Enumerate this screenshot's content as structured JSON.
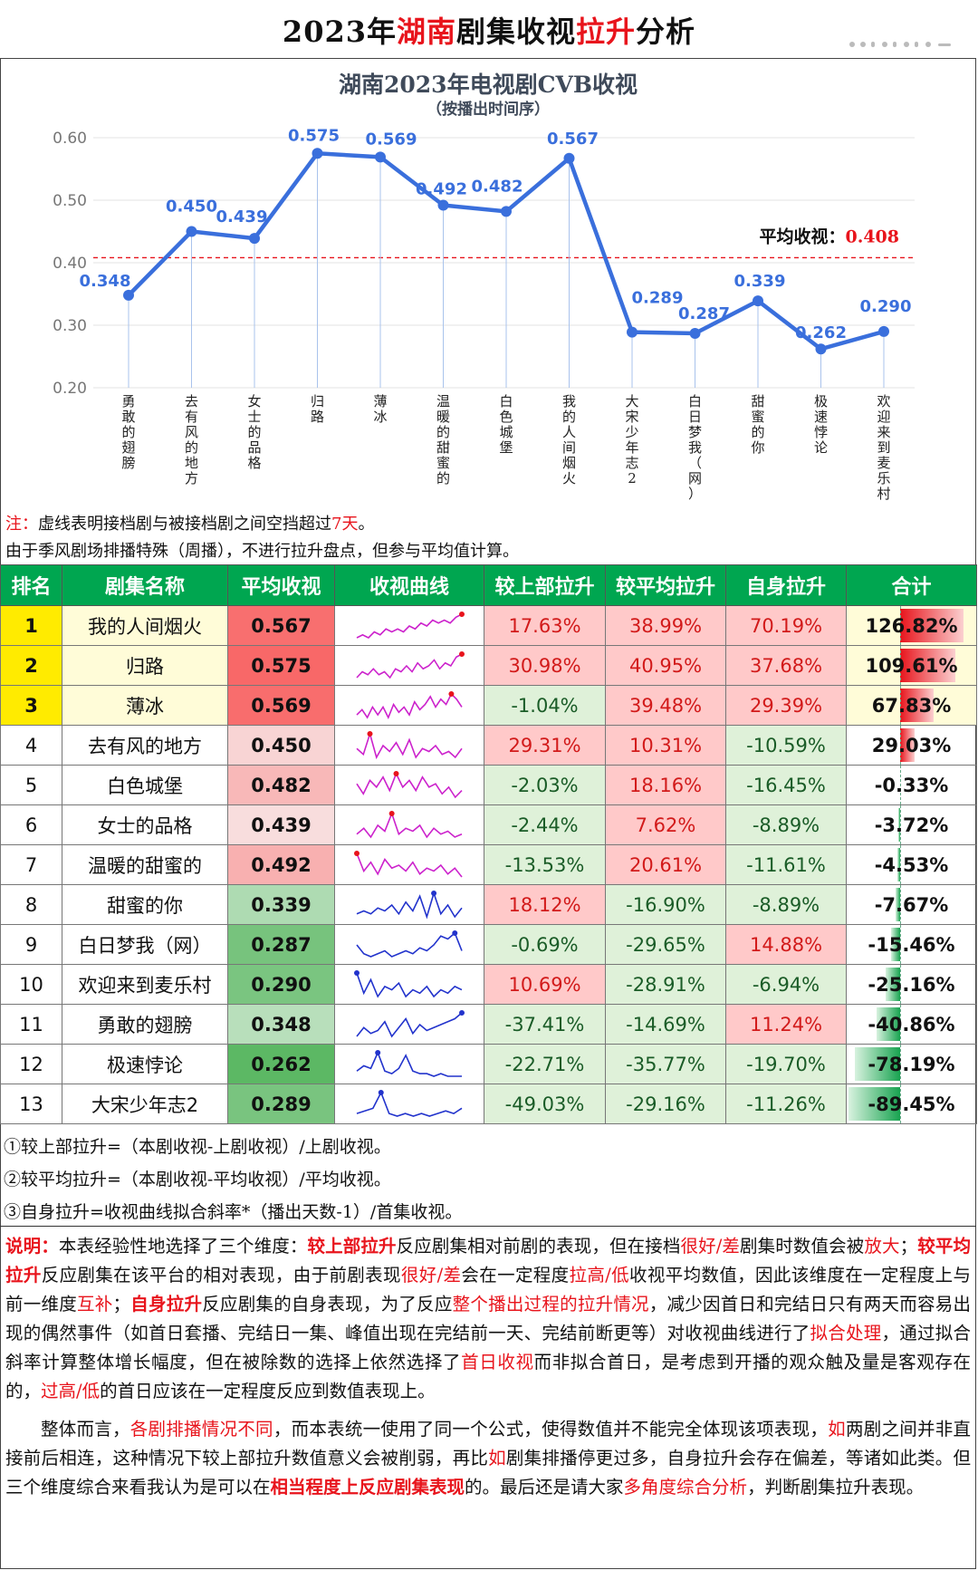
{
  "header": {
    "title_a": "2023年",
    "title_b": "湖南",
    "title_c": "剧集收视",
    "title_d": "拉升",
    "title_e": "分析"
  },
  "chart_data": {
    "type": "line",
    "title": "湖南2023年电视剧CVB收视",
    "subtitle": "（按播出时间序）",
    "categories": [
      "勇敢的翅膀",
      "去有风的地方",
      "女士的品格",
      "归路",
      "薄冰",
      "温暖的甜蜜的",
      "白色城堡",
      "我的人间烟火",
      "大宋少年志2",
      "白日梦我（网）",
      "甜蜜的你",
      "极速悖论",
      "欢迎来到麦乐村"
    ],
    "values": [
      0.348,
      0.45,
      0.439,
      0.575,
      0.569,
      0.492,
      0.482,
      0.567,
      0.289,
      0.287,
      0.339,
      0.262,
      0.29
    ],
    "value_labels": [
      "0.348",
      "0.450",
      "0.439",
      "0.575",
      "0.569",
      "0.492",
      "0.482",
      "0.567",
      "0.289",
      "0.287",
      "0.339",
      "0.262",
      "0.290"
    ],
    "ylim": [
      0.2,
      0.6
    ],
    "yticks": [
      "0.20",
      "0.30",
      "0.40",
      "0.50",
      "0.60"
    ],
    "average_label": "平均收视：",
    "average_value": "0.408",
    "average": 0.408,
    "grid": true,
    "line_color": "#3a6fdc",
    "average_color": "#e8141c"
  },
  "notes": {
    "prefix": "注：",
    "line1_a": "虚线表明接档剧与被接档剧之间空挡超过",
    "line1_b": "7天",
    "line1_c": "。",
    "line2": "由于季风剧场排播特殊（周播），不进行拉升盘点，但参与平均值计算。"
  },
  "table": {
    "headers": [
      "排名",
      "剧集名称",
      "平均收视",
      "收视曲线",
      "较上部拉升",
      "较平均拉升",
      "自身拉升",
      "合计"
    ],
    "rows": [
      {
        "rank": "1",
        "name": "我的人间烟火",
        "cvb": "0.567",
        "cvb_num": 0.567,
        "up": "17.63%",
        "avg": "38.99%",
        "self": "70.19%",
        "total": "126.82%",
        "total_num": 126.82,
        "spark": [
          3,
          4,
          3,
          5,
          4,
          6,
          5,
          6,
          5,
          7,
          6,
          8,
          7,
          9,
          8,
          9,
          8,
          10,
          11
        ],
        "spark_color": "#cc22cc",
        "top": true
      },
      {
        "rank": "2",
        "name": "归路",
        "cvb": "0.575",
        "cvb_num": 0.575,
        "up": "30.98%",
        "avg": "40.95%",
        "self": "37.68%",
        "total": "109.61%",
        "total_num": 109.61,
        "spark": [
          3,
          5,
          4,
          6,
          4,
          5,
          3,
          6,
          5,
          7,
          5,
          8,
          6,
          7,
          9,
          6,
          8,
          7,
          10,
          11
        ],
        "spark_color": "#cc22cc",
        "top": true
      },
      {
        "rank": "3",
        "name": "薄冰",
        "cvb": "0.569",
        "cvb_num": 0.569,
        "up": "-1.04%",
        "avg": "39.48%",
        "self": "29.39%",
        "total": "67.83%",
        "total_num": 67.83,
        "spark": [
          3,
          5,
          2,
          6,
          3,
          6,
          2,
          7,
          4,
          6,
          3,
          8,
          5,
          7,
          10,
          6,
          9,
          7,
          11,
          9,
          6
        ],
        "spark_color": "#cc22cc",
        "top": true
      },
      {
        "rank": "4",
        "name": "去有风的地方",
        "cvb": "0.450",
        "cvb_num": 0.45,
        "up": "29.31%",
        "avg": "10.31%",
        "self": "-10.59%",
        "total": "29.03%",
        "total_num": 29.03,
        "spark": [
          6,
          4,
          11,
          3,
          7,
          5,
          8,
          4,
          9,
          3,
          6,
          5,
          7,
          4,
          5,
          3,
          6
        ],
        "spark_color": "#cc22cc",
        "top": false
      },
      {
        "rank": "5",
        "name": "白色城堡",
        "cvb": "0.482",
        "cvb_num": 0.482,
        "up": "-2.03%",
        "avg": "18.16%",
        "self": "-16.45%",
        "total": "-0.33%",
        "total_num": -0.33,
        "spark": [
          7,
          4,
          8,
          6,
          9,
          5,
          10,
          6,
          8,
          5,
          9,
          6,
          7,
          4,
          6,
          3,
          5
        ],
        "spark_color": "#cc22cc",
        "top": false
      },
      {
        "rank": "6",
        "name": "女士的品格",
        "cvb": "0.439",
        "cvb_num": 0.439,
        "up": "-2.44%",
        "avg": "7.62%",
        "self": "-8.89%",
        "total": "-3.72%",
        "total_num": -3.72,
        "spark": [
          4,
          6,
          3,
          7,
          5,
          11,
          4,
          6,
          5,
          7,
          3,
          6,
          4,
          5,
          3,
          4
        ],
        "spark_color": "#cc22cc",
        "top": false
      },
      {
        "rank": "7",
        "name": "温暖的甜蜜的",
        "cvb": "0.492",
        "cvb_num": 0.492,
        "up": "-13.53%",
        "avg": "20.61%",
        "self": "-11.61%",
        "total": "-4.53%",
        "total_num": -4.53,
        "spark": [
          11,
          5,
          8,
          4,
          9,
          6,
          7,
          5,
          8,
          4,
          6,
          5,
          7,
          4,
          6,
          3
        ],
        "spark_color": "#cc22cc",
        "top": false
      },
      {
        "rank": "8",
        "name": "甜蜜的你",
        "cvb": "0.339",
        "cvb_num": 0.339,
        "up": "18.12%",
        "avg": "-16.90%",
        "self": "-8.89%",
        "total": "-7.67%",
        "total_num": -7.67,
        "spark": [
          4,
          5,
          4,
          6,
          5,
          7,
          4,
          8,
          5,
          10,
          3,
          11,
          4,
          7,
          3,
          6
        ],
        "spark_color": "#2233cc",
        "top": false
      },
      {
        "rank": "9",
        "name": "白日梦我（网）",
        "cvb": "0.287",
        "cvb_num": 0.287,
        "up": "-0.69%",
        "avg": "-29.65%",
        "self": "14.88%",
        "total": "-15.46%",
        "total_num": -15.46,
        "spark": [
          7,
          4,
          3,
          4,
          5,
          3,
          4,
          5,
          4,
          6,
          5,
          7,
          10,
          9,
          11,
          5
        ],
        "spark_color": "#2233cc",
        "top": false
      },
      {
        "rank": "10",
        "name": "欢迎来到麦乐村",
        "cvb": "0.290",
        "cvb_num": 0.29,
        "up": "10.69%",
        "avg": "-28.91%",
        "self": "-6.94%",
        "total": "-25.16%",
        "total_num": -25.16,
        "spark": [
          11,
          5,
          9,
          4,
          7,
          6,
          8,
          4,
          6,
          5,
          7,
          4,
          6,
          5,
          7,
          6
        ],
        "spark_color": "#2233cc",
        "top": false
      },
      {
        "rank": "11",
        "name": "勇敢的翅膀",
        "cvb": "0.348",
        "cvb_num": 0.348,
        "up": "-37.41%",
        "avg": "-14.69%",
        "self": "11.24%",
        "total": "-40.86%",
        "total_num": -40.86,
        "spark": [
          3,
          6,
          4,
          5,
          8,
          3,
          6,
          9,
          4,
          7,
          5,
          6,
          7,
          8,
          9,
          11
        ],
        "spark_color": "#2233cc",
        "top": false
      },
      {
        "rank": "12",
        "name": "极速悖论",
        "cvb": "0.262",
        "cvb_num": 0.262,
        "up": "-22.71%",
        "avg": "-35.77%",
        "self": "-19.70%",
        "total": "-78.19%",
        "total_num": -78.19,
        "spark": [
          4,
          6,
          5,
          11,
          4,
          3,
          5,
          10,
          4,
          3,
          3,
          2,
          3,
          2,
          2,
          2
        ],
        "spark_color": "#2233cc",
        "top": false
      },
      {
        "rank": "13",
        "name": "大宋少年志2",
        "cvb": "0.289",
        "cvb_num": 0.289,
        "up": "-49.03%",
        "avg": "-29.16%",
        "self": "-11.26%",
        "total": "-89.45%",
        "total_num": -89.45,
        "spark": [
          3,
          4,
          5,
          11,
          3,
          2,
          3,
          2,
          3,
          2,
          3,
          4,
          3,
          5
        ],
        "spark_color": "#2233cc",
        "top": false
      }
    ]
  },
  "formulas": [
    "①较上部拉升=（本剧收视-上剧收视）/上剧收视。",
    "②较平均拉升=（本剧收视-平均收视）/平均收视。",
    "③自身拉升=收视曲线拟合斜率*（播出天数-1）/首集收视。"
  ],
  "explanation": {
    "p1": [
      [
        "rb",
        "说明："
      ],
      [
        "",
        "本表经验性地选择了三个维度："
      ],
      [
        "rb",
        "较上部拉升"
      ],
      [
        "",
        "反应剧集相对前剧的表现，但在接档"
      ],
      [
        "r",
        "很好/差"
      ],
      [
        "",
        "剧集时数值会被"
      ],
      [
        "r",
        "放大"
      ],
      [
        "",
        "；"
      ],
      [
        "rb",
        "较平均拉升"
      ],
      [
        "",
        "反应剧集在该平台的相对表现，由于前剧表现"
      ],
      [
        "r",
        "很好/差"
      ],
      [
        "",
        "会在一定程度"
      ],
      [
        "r",
        "拉高/低"
      ],
      [
        "",
        "收视平均数值，因此该维度在一定程度上与前一维度"
      ],
      [
        "r",
        "互补"
      ],
      [
        "",
        "；"
      ],
      [
        "rb",
        "自身拉升"
      ],
      [
        "",
        "反应剧集的自身表现，为了反应"
      ],
      [
        "r",
        "整个播出过程的拉升情况"
      ],
      [
        "",
        "，减少因首日和完结日只有两天而容易出现的偶然事件（如首日套播、完结日一集、峰值出现在完结前一天、完结前断更等）对收视曲线进行了"
      ],
      [
        "r",
        "拟合处理"
      ],
      [
        "",
        "，通过拟合斜率计算整体增长幅度，但在被除数的选择上依然选择了"
      ],
      [
        "r",
        "首日收视"
      ],
      [
        "",
        "而非拟合首日，是考虑到开播的观众触及量是客观存在的，"
      ],
      [
        "r",
        "过高/低"
      ],
      [
        "",
        "的首日应该在一定程度反应到数值表现上。"
      ]
    ],
    "p2": [
      [
        "",
        "整体而言，"
      ],
      [
        "r",
        "各剧排播情况不同"
      ],
      [
        "",
        "，而本表统一使用了同一个公式，使得数值并不能完全体现该项表现，"
      ],
      [
        "r",
        "如"
      ],
      [
        "",
        "两剧之间并非直接前后相连，这种情况下较上部拉升数值意义会被削弱，再比"
      ],
      [
        "r",
        "如"
      ],
      [
        "",
        "剧集排播停更过多，自身拉升会存在偏差，等诸如此类。但三个维度综合来看我认为是可以在"
      ],
      [
        "rb",
        "相当程度上反应剧集表现"
      ],
      [
        "",
        "的。最后还是请大家"
      ],
      [
        "r",
        "多角度综合分析"
      ],
      [
        "",
        "，判断剧集拉升表现。"
      ]
    ]
  }
}
